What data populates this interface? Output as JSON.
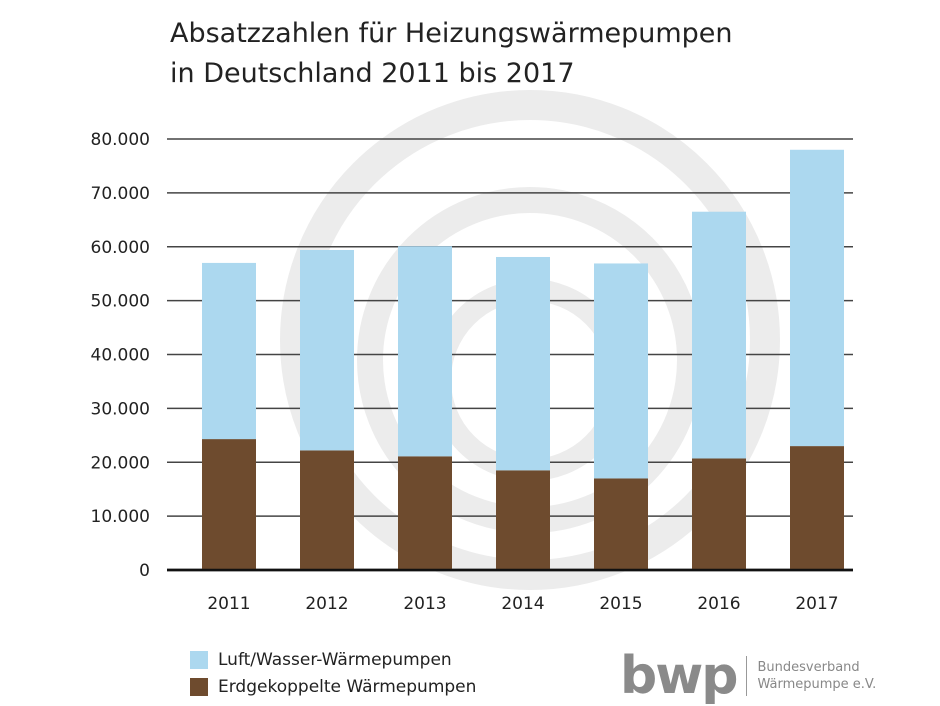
{
  "chart_data": {
    "type": "bar",
    "stacked": true,
    "title": "Absatzzahlen für Heizungswärmepumpen in Deutschland 2011 bis 2017",
    "title_lines": [
      "Absatzzahlen für Heizungswärmepumpen",
      "in Deutschland 2011 bis 2017"
    ],
    "xlabel": "",
    "ylabel": "",
    "categories": [
      "2011",
      "2012",
      "2013",
      "2014",
      "2015",
      "2016",
      "2017"
    ],
    "series": [
      {
        "name": "Erdgekoppelte Wärmepumpen",
        "color": "#6e4b2e",
        "values": [
          24300,
          22200,
          21100,
          18500,
          17000,
          20700,
          23000
        ]
      },
      {
        "name": "Luft/Wasser-Wärmepumpen",
        "color": "#acd8ef",
        "values": [
          32700,
          37200,
          39000,
          39600,
          39900,
          45800,
          55000
        ]
      }
    ],
    "ylim": [
      0,
      80000
    ],
    "yticks": [
      0,
      10000,
      20000,
      30000,
      40000,
      50000,
      60000,
      70000,
      80000
    ],
    "ytick_labels": [
      "0",
      "10.000",
      "20.000",
      "30.000",
      "40.000",
      "50.000",
      "60.000",
      "70.000",
      "80.000"
    ],
    "grid": true,
    "legend_placement": "bottom-left"
  },
  "logo": {
    "mark": "bwp",
    "line1": "Bundesverband",
    "line2": "Wärmepumpe e.V."
  }
}
